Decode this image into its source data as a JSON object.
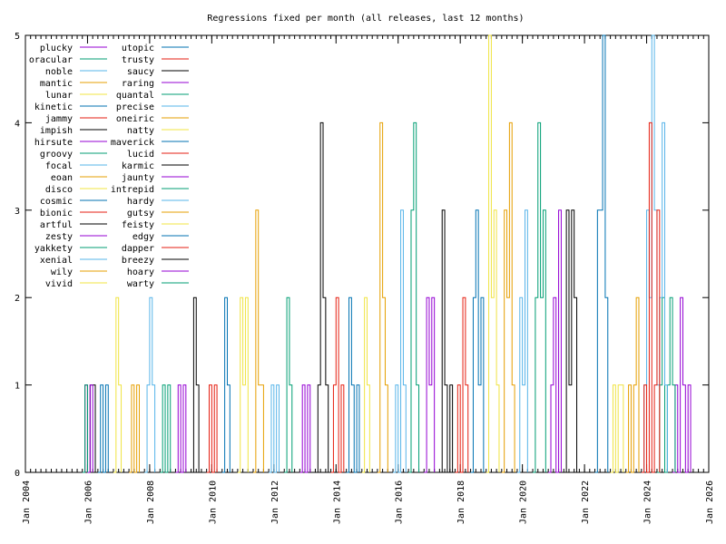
{
  "chart_data": {
    "type": "line",
    "title": "Regressions fixed per month (all releases, last 12 months)",
    "xlabel": "",
    "ylabel": "",
    "x_range": [
      "2004-01",
      "2026-01"
    ],
    "ylim": [
      0,
      5
    ],
    "y_ticks": [
      "0",
      "1",
      "2",
      "3",
      "4",
      "5"
    ],
    "x_ticks": [
      "Jan 2004",
      "Jan 2006",
      "Jan 2008",
      "Jan 2010",
      "Jan 2012",
      "Jan 2014",
      "Jan 2016",
      "Jan 2018",
      "Jan 2020",
      "Jan 2022",
      "Jan 2024",
      "Jan 2026"
    ],
    "grid": false,
    "legend_position": "top-left",
    "series": [
      {
        "name": "plucky",
        "color": "#9400d3",
        "points": [
          [
            "2024-11",
            0
          ],
          [
            "2024-12",
            1
          ],
          [
            "2025-01",
            0
          ],
          [
            "2025-02",
            2
          ],
          [
            "2025-03",
            1
          ],
          [
            "2025-04",
            0
          ],
          [
            "2025-05",
            1
          ],
          [
            "2025-06",
            0
          ]
        ]
      },
      {
        "name": "oracular",
        "color": "#009e73",
        "points": [
          [
            "2024-05",
            0
          ],
          [
            "2024-06",
            1
          ],
          [
            "2024-07",
            2
          ],
          [
            "2024-08",
            0
          ],
          [
            "2024-09",
            1
          ],
          [
            "2024-10",
            2
          ],
          [
            "2024-11",
            1
          ],
          [
            "2024-12",
            0
          ]
        ]
      },
      {
        "name": "noble",
        "color": "#56b4e9",
        "points": [
          [
            "2023-11",
            0
          ],
          [
            "2023-12",
            1
          ],
          [
            "2024-01",
            3
          ],
          [
            "2024-02",
            2
          ],
          [
            "2024-03",
            5
          ],
          [
            "2024-04",
            3
          ],
          [
            "2024-05",
            1
          ],
          [
            "2024-06",
            2
          ],
          [
            "2024-07",
            4
          ],
          [
            "2024-08",
            1
          ],
          [
            "2024-09",
            0
          ]
        ]
      },
      {
        "name": "mantic",
        "color": "#e69f00",
        "points": [
          [
            "2023-05",
            0
          ],
          [
            "2023-06",
            1
          ],
          [
            "2023-07",
            0
          ],
          [
            "2023-08",
            1
          ],
          [
            "2023-09",
            2
          ],
          [
            "2023-10",
            0
          ]
        ]
      },
      {
        "name": "lunar",
        "color": "#f0e442",
        "points": [
          [
            "2022-11",
            0
          ],
          [
            "2022-12",
            1
          ],
          [
            "2023-01",
            0
          ],
          [
            "2023-02",
            1
          ],
          [
            "2023-03",
            1
          ],
          [
            "2023-04",
            0
          ]
        ]
      },
      {
        "name": "kinetic",
        "color": "#0072b2",
        "points": [
          [
            "2022-05",
            0
          ],
          [
            "2022-06",
            3
          ],
          [
            "2022-07",
            3
          ],
          [
            "2022-08",
            5
          ],
          [
            "2022-09",
            2
          ],
          [
            "2022-10",
            0
          ]
        ]
      },
      {
        "name": "jammy",
        "color": "#e51e10",
        "points": [
          [
            "2023-11",
            0
          ],
          [
            "2023-12",
            1
          ],
          [
            "2024-01",
            0
          ],
          [
            "2024-02",
            4
          ],
          [
            "2024-03",
            0
          ],
          [
            "2024-04",
            1
          ],
          [
            "2024-05",
            3
          ],
          [
            "2024-06",
            0
          ]
        ]
      },
      {
        "name": "impish",
        "color": "#000000",
        "points": [
          [
            "2021-05",
            0
          ],
          [
            "2021-06",
            3
          ],
          [
            "2021-07",
            1
          ],
          [
            "2021-08",
            3
          ],
          [
            "2021-09",
            2
          ],
          [
            "2021-10",
            0
          ]
        ]
      },
      {
        "name": "hirsute",
        "color": "#9400d3",
        "points": [
          [
            "2020-11",
            0
          ],
          [
            "2020-12",
            1
          ],
          [
            "2021-01",
            2
          ],
          [
            "2021-02",
            0
          ],
          [
            "2021-03",
            3
          ],
          [
            "2021-04",
            0
          ]
        ]
      },
      {
        "name": "groovy",
        "color": "#009e73",
        "points": [
          [
            "2020-05",
            0
          ],
          [
            "2020-06",
            2
          ],
          [
            "2020-07",
            4
          ],
          [
            "2020-08",
            2
          ],
          [
            "2020-09",
            3
          ],
          [
            "2020-10",
            0
          ]
        ]
      },
      {
        "name": "focal",
        "color": "#56b4e9",
        "points": [
          [
            "2019-11",
            0
          ],
          [
            "2019-12",
            2
          ],
          [
            "2020-01",
            1
          ],
          [
            "2020-02",
            3
          ],
          [
            "2020-03",
            0
          ]
        ]
      },
      {
        "name": "eoan",
        "color": "#e69f00",
        "points": [
          [
            "2019-05",
            0
          ],
          [
            "2019-06",
            3
          ],
          [
            "2019-07",
            2
          ],
          [
            "2019-08",
            4
          ],
          [
            "2019-09",
            1
          ],
          [
            "2019-10",
            0
          ]
        ]
      },
      {
        "name": "disco",
        "color": "#f0e442",
        "points": [
          [
            "2018-11",
            0
          ],
          [
            "2018-12",
            5
          ],
          [
            "2019-01",
            2
          ],
          [
            "2019-02",
            3
          ],
          [
            "2019-03",
            1
          ],
          [
            "2019-04",
            0
          ]
        ]
      },
      {
        "name": "cosmic",
        "color": "#0072b2",
        "points": [
          [
            "2018-05",
            0
          ],
          [
            "2018-06",
            2
          ],
          [
            "2018-07",
            3
          ],
          [
            "2018-08",
            1
          ],
          [
            "2018-09",
            2
          ],
          [
            "2018-10",
            0
          ]
        ]
      },
      {
        "name": "bionic",
        "color": "#e51e10",
        "points": [
          [
            "2017-11",
            0
          ],
          [
            "2017-12",
            1
          ],
          [
            "2018-01",
            0
          ],
          [
            "2018-02",
            2
          ],
          [
            "2018-03",
            1
          ],
          [
            "2018-04",
            0
          ]
        ]
      },
      {
        "name": "artful",
        "color": "#000000",
        "points": [
          [
            "2017-05",
            0
          ],
          [
            "2017-06",
            3
          ],
          [
            "2017-07",
            1
          ],
          [
            "2017-08",
            0
          ],
          [
            "2017-09",
            1
          ],
          [
            "2017-10",
            0
          ]
        ]
      },
      {
        "name": "zesty",
        "color": "#9400d3",
        "points": [
          [
            "2016-11",
            0
          ],
          [
            "2016-12",
            2
          ],
          [
            "2017-01",
            1
          ],
          [
            "2017-02",
            2
          ],
          [
            "2017-03",
            0
          ]
        ]
      },
      {
        "name": "yakkety",
        "color": "#009e73",
        "points": [
          [
            "2016-05",
            0
          ],
          [
            "2016-06",
            3
          ],
          [
            "2016-07",
            4
          ],
          [
            "2016-08",
            1
          ],
          [
            "2016-09",
            0
          ]
        ]
      },
      {
        "name": "xenial",
        "color": "#56b4e9",
        "points": [
          [
            "2015-11",
            0
          ],
          [
            "2015-12",
            1
          ],
          [
            "2016-01",
            0
          ],
          [
            "2016-02",
            3
          ],
          [
            "2016-03",
            1
          ],
          [
            "2016-04",
            0
          ]
        ]
      },
      {
        "name": "wily",
        "color": "#e69f00",
        "points": [
          [
            "2015-05",
            0
          ],
          [
            "2015-06",
            4
          ],
          [
            "2015-07",
            2
          ],
          [
            "2015-08",
            1
          ],
          [
            "2015-09",
            0
          ]
        ]
      },
      {
        "name": "vivid",
        "color": "#f0e442",
        "points": [
          [
            "2014-11",
            0
          ],
          [
            "2014-12",
            2
          ],
          [
            "2015-01",
            1
          ],
          [
            "2015-02",
            0
          ]
        ]
      },
      {
        "name": "utopic",
        "color": "#0072b2",
        "points": [
          [
            "2014-05",
            0
          ],
          [
            "2014-06",
            2
          ],
          [
            "2014-07",
            1
          ],
          [
            "2014-08",
            0
          ],
          [
            "2014-09",
            1
          ],
          [
            "2014-10",
            0
          ]
        ]
      },
      {
        "name": "trusty",
        "color": "#e51e10",
        "points": [
          [
            "2013-11",
            0
          ],
          [
            "2013-12",
            1
          ],
          [
            "2014-01",
            2
          ],
          [
            "2014-02",
            0
          ],
          [
            "2014-03",
            1
          ],
          [
            "2014-04",
            0
          ]
        ]
      },
      {
        "name": "saucy",
        "color": "#000000",
        "points": [
          [
            "2013-05",
            0
          ],
          [
            "2013-06",
            1
          ],
          [
            "2013-07",
            4
          ],
          [
            "2013-08",
            2
          ],
          [
            "2013-09",
            1
          ],
          [
            "2013-10",
            0
          ]
        ]
      },
      {
        "name": "raring",
        "color": "#9400d3",
        "points": [
          [
            "2012-11",
            0
          ],
          [
            "2012-12",
            1
          ],
          [
            "2013-01",
            0
          ],
          [
            "2013-02",
            1
          ],
          [
            "2013-03",
            0
          ]
        ]
      },
      {
        "name": "quantal",
        "color": "#009e73",
        "points": [
          [
            "2012-05",
            0
          ],
          [
            "2012-06",
            2
          ],
          [
            "2012-07",
            1
          ],
          [
            "2012-08",
            0
          ]
        ]
      },
      {
        "name": "precise",
        "color": "#56b4e9",
        "points": [
          [
            "2011-11",
            0
          ],
          [
            "2011-12",
            1
          ],
          [
            "2012-01",
            0
          ],
          [
            "2012-02",
            1
          ],
          [
            "2012-03",
            0
          ]
        ]
      },
      {
        "name": "oneiric",
        "color": "#e69f00",
        "points": [
          [
            "2011-05",
            0
          ],
          [
            "2011-06",
            3
          ],
          [
            "2011-07",
            1
          ],
          [
            "2011-08",
            1
          ],
          [
            "2011-09",
            0
          ]
        ]
      },
      {
        "name": "natty",
        "color": "#f0e442",
        "points": [
          [
            "2010-11",
            0
          ],
          [
            "2010-12",
            2
          ],
          [
            "2011-01",
            1
          ],
          [
            "2011-02",
            2
          ],
          [
            "2011-03",
            0
          ]
        ]
      },
      {
        "name": "maverick",
        "color": "#0072b2",
        "points": [
          [
            "2010-05",
            0
          ],
          [
            "2010-06",
            2
          ],
          [
            "2010-07",
            1
          ],
          [
            "2010-08",
            0
          ]
        ]
      },
      {
        "name": "lucid",
        "color": "#e51e10",
        "points": [
          [
            "2009-11",
            0
          ],
          [
            "2009-12",
            1
          ],
          [
            "2010-01",
            0
          ],
          [
            "2010-02",
            1
          ],
          [
            "2010-03",
            0
          ]
        ]
      },
      {
        "name": "karmic",
        "color": "#000000",
        "points": [
          [
            "2009-05",
            0
          ],
          [
            "2009-06",
            2
          ],
          [
            "2009-07",
            1
          ],
          [
            "2009-08",
            0
          ]
        ]
      },
      {
        "name": "jaunty",
        "color": "#9400d3",
        "points": [
          [
            "2008-11",
            0
          ],
          [
            "2008-12",
            1
          ],
          [
            "2009-01",
            0
          ],
          [
            "2009-02",
            1
          ],
          [
            "2009-03",
            0
          ]
        ]
      },
      {
        "name": "intrepid",
        "color": "#009e73",
        "points": [
          [
            "2008-05",
            0
          ],
          [
            "2008-06",
            1
          ],
          [
            "2008-07",
            0
          ],
          [
            "2008-08",
            1
          ],
          [
            "2008-09",
            0
          ]
        ]
      },
      {
        "name": "hardy",
        "color": "#56b4e9",
        "points": [
          [
            "2007-11",
            0
          ],
          [
            "2007-12",
            1
          ],
          [
            "2008-01",
            2
          ],
          [
            "2008-02",
            1
          ],
          [
            "2008-03",
            0
          ]
        ]
      },
      {
        "name": "gutsy",
        "color": "#e69f00",
        "points": [
          [
            "2007-05",
            0
          ],
          [
            "2007-06",
            1
          ],
          [
            "2007-07",
            0
          ],
          [
            "2007-08",
            1
          ],
          [
            "2007-09",
            0
          ]
        ]
      },
      {
        "name": "feisty",
        "color": "#f0e442",
        "points": [
          [
            "2006-11",
            0
          ],
          [
            "2006-12",
            2
          ],
          [
            "2007-01",
            1
          ],
          [
            "2007-02",
            0
          ]
        ]
      },
      {
        "name": "edgy",
        "color": "#0072b2",
        "points": [
          [
            "2006-05",
            0
          ],
          [
            "2006-06",
            1
          ],
          [
            "2006-07",
            0
          ],
          [
            "2006-08",
            1
          ],
          [
            "2006-09",
            0
          ]
        ]
      },
      {
        "name": "dapper",
        "color": "#e51e10",
        "points": [
          [
            "2005-11",
            0
          ],
          [
            "2005-12",
            1
          ],
          [
            "2006-01",
            0
          ]
        ]
      },
      {
        "name": "breezy",
        "color": "#000000",
        "points": [
          [
            "2006-01",
            0
          ],
          [
            "2006-02",
            1
          ],
          [
            "2006-03",
            1
          ],
          [
            "2006-04",
            0
          ]
        ]
      },
      {
        "name": "hoary",
        "color": "#9400d3",
        "points": [
          [
            "2005-11",
            0
          ],
          [
            "2005-12",
            1
          ],
          [
            "2006-01",
            0
          ],
          [
            "2006-02",
            1
          ],
          [
            "2006-03",
            0
          ]
        ]
      },
      {
        "name": "warty",
        "color": "#009e73",
        "points": [
          [
            "2005-11",
            0
          ],
          [
            "2005-12",
            1
          ],
          [
            "2006-01",
            0
          ]
        ]
      }
    ]
  }
}
